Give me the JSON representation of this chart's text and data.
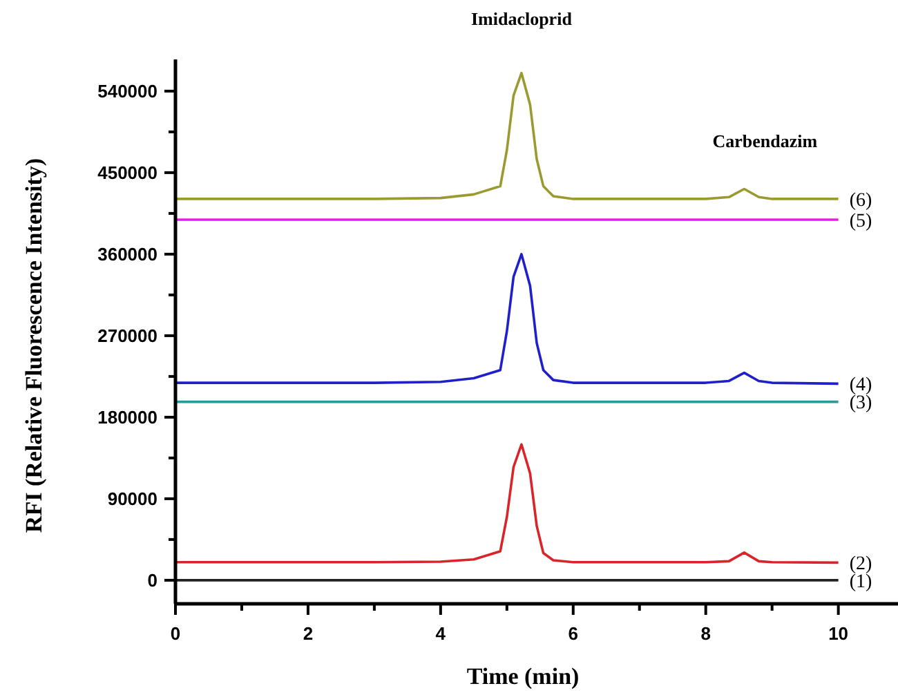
{
  "chart_data": {
    "type": "line",
    "xlabel": "Time (min)",
    "ylabel": "RFI (Relative Fluorescence Intensity)",
    "x": [
      0,
      1,
      2,
      3,
      4,
      4.5,
      4.9,
      5.0,
      5.1,
      5.22,
      5.35,
      5.45,
      5.55,
      5.7,
      6,
      7,
      8,
      8.35,
      8.58,
      8.8,
      9,
      10
    ],
    "series": [
      {
        "color": "#222222",
        "values": [
          0,
          0,
          0,
          0,
          0,
          0,
          0,
          0,
          0,
          0,
          0,
          0,
          0,
          0,
          0,
          0,
          0,
          0,
          0,
          0,
          0,
          0
        ]
      },
      {
        "color": "#d9252a",
        "values": [
          20000,
          20000,
          20000,
          20000,
          20500,
          23000,
          32000,
          70000,
          125000,
          150000,
          118000,
          60000,
          30000,
          22000,
          20000,
          20000,
          20000,
          21000,
          30500,
          21000,
          20000,
          19500
        ]
      },
      {
        "color": "#2a9a9a",
        "values": [
          197000,
          197000,
          197000,
          197000,
          197000,
          197000,
          197000,
          197000,
          197000,
          197000,
          197000,
          197000,
          197000,
          197000,
          197000,
          197000,
          197000,
          197000,
          197000,
          197000,
          197000,
          197000
        ]
      },
      {
        "color": "#2020c8",
        "values": [
          218000,
          218000,
          218000,
          218000,
          219000,
          223000,
          232000,
          275000,
          335000,
          360000,
          325000,
          262000,
          232000,
          221000,
          218000,
          218000,
          218000,
          220000,
          229000,
          220000,
          218000,
          217000
        ]
      },
      {
        "color": "#e020e0",
        "values": [
          398000,
          398000,
          398000,
          398000,
          398000,
          398000,
          398000,
          398000,
          398000,
          398000,
          398000,
          398000,
          398000,
          398000,
          398000,
          398000,
          398000,
          398000,
          398000,
          398000,
          398000,
          398000
        ]
      },
      {
        "color": "#9a9a30",
        "values": [
          421000,
          421000,
          421000,
          421000,
          422000,
          426000,
          435000,
          475000,
          535000,
          560000,
          525000,
          465000,
          435000,
          424000,
          421000,
          421000,
          421000,
          423000,
          432000,
          423000,
          421000,
          421000
        ]
      }
    ],
    "xlim": [
      0,
      10.9
    ],
    "ylim": [
      -26000,
      575000
    ],
    "xticks": [
      0,
      {
        "value": 1,
        "label": null
      },
      2,
      {
        "value": 3,
        "label": null
      },
      4,
      {
        "value": 5,
        "label": null
      },
      6,
      {
        "value": 7,
        "label": null
      },
      8,
      {
        "value": 9,
        "label": null
      },
      10
    ],
    "yticks": [
      0,
      {
        "value": 45000,
        "label": null
      },
      90000,
      {
        "value": 135000,
        "label": null
      },
      180000,
      {
        "value": 225000,
        "label": null
      },
      270000,
      {
        "value": 315000,
        "label": null
      },
      360000,
      {
        "value": 405000,
        "label": null
      },
      450000,
      {
        "value": 495000,
        "label": null
      },
      540000
    ],
    "annotations": [
      {
        "text": "Imidacloprid",
        "x": 5.22,
        "y": 560000
      },
      {
        "text": "Carbendazim",
        "x": 8.58,
        "y": 432000
      },
      {
        "text": "(1)",
        "x": 10,
        "y": 0
      },
      {
        "text": "(2)",
        "x": 10,
        "y": 19500
      },
      {
        "text": "(3)",
        "x": 10,
        "y": 197000
      },
      {
        "text": "(4)",
        "x": 10,
        "y": 217000
      },
      {
        "text": "(5)",
        "x": 10,
        "y": 398000
      },
      {
        "text": "(6)",
        "x": 10,
        "y": 421000
      }
    ]
  }
}
